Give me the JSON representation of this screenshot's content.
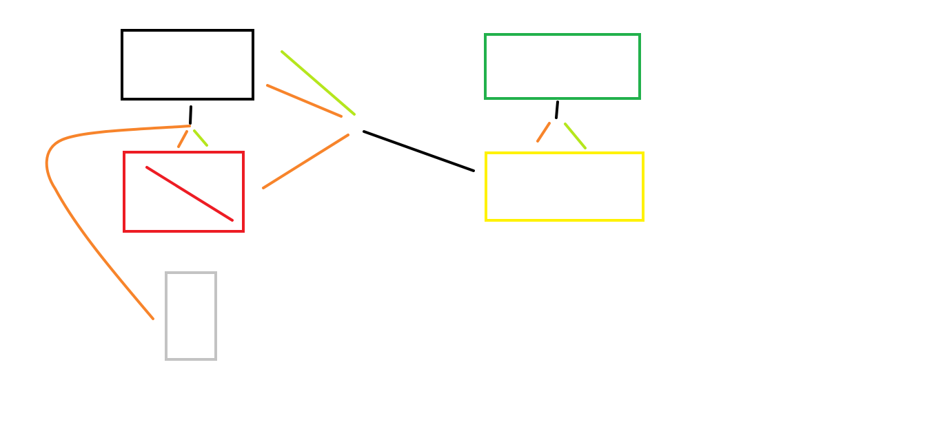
{
  "colors": {
    "background": "#ffffff",
    "black": "#000000",
    "green": "#22b14c",
    "red": "#ed1c24",
    "yellow": "#fff200",
    "gray": "#c3c3c3",
    "orange": "#f7842b",
    "lime": "#b5e61d"
  },
  "shapes": [
    {
      "name": "black-box",
      "color": "black"
    },
    {
      "name": "red-box",
      "color": "red"
    },
    {
      "name": "gray-box",
      "color": "gray"
    },
    {
      "name": "green-box",
      "color": "green"
    },
    {
      "name": "yellow-box",
      "color": "yellow"
    }
  ],
  "connectors": [
    {
      "name": "black-connector-left",
      "color": "black"
    },
    {
      "name": "black-connector-right",
      "color": "black"
    },
    {
      "name": "black-connector-center",
      "color": "black"
    },
    {
      "name": "orange-curve-connector",
      "color": "orange"
    },
    {
      "name": "orange-connector-left",
      "color": "orange"
    },
    {
      "name": "lime-connector-left",
      "color": "lime"
    },
    {
      "name": "orange-connector-right",
      "color": "orange"
    },
    {
      "name": "lime-connector-right",
      "color": "lime"
    },
    {
      "name": "lime-fan-line",
      "color": "lime"
    },
    {
      "name": "orange-fan-line-upper",
      "color": "orange"
    },
    {
      "name": "orange-fan-line-lower",
      "color": "orange"
    },
    {
      "name": "red-diagonal-line",
      "color": "red"
    }
  ]
}
